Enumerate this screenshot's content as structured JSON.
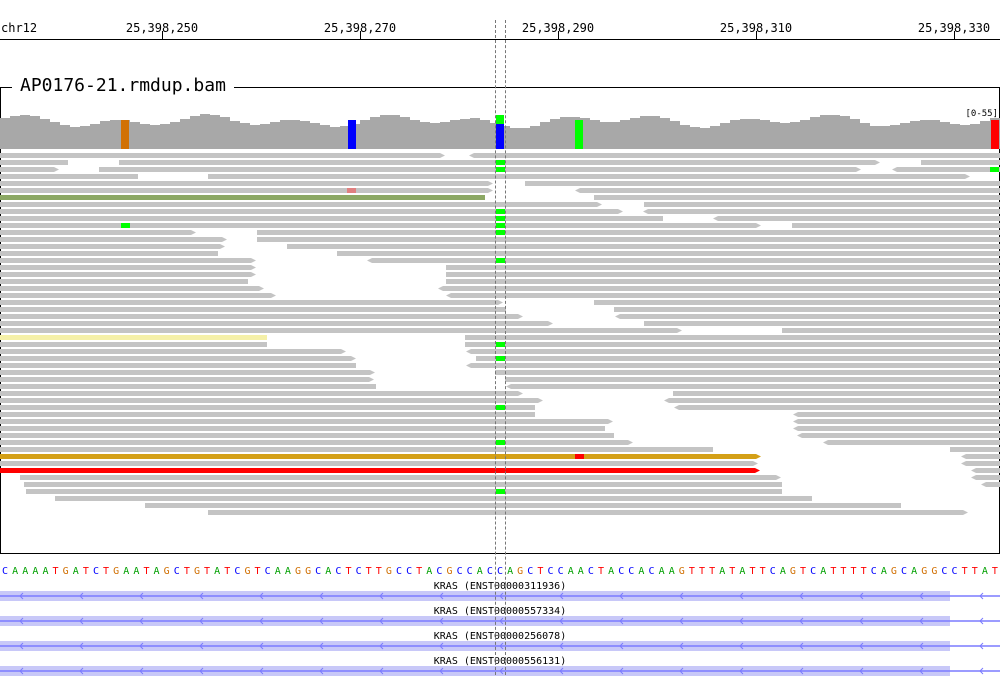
{
  "ruler": {
    "chromosome": "chr12",
    "ticks": [
      "25,398,250",
      "25,398,270",
      "25,398,290",
      "25,398,310",
      "25,398,330"
    ]
  },
  "track": {
    "title": "AP0176-21.rmdup.bam",
    "coverage_range": "[0-55]"
  },
  "sequence": "CAAAATGATCTGAATAGCTGTATCGTCAAGGCACTCTTGCCTACGCCACCAGCTCCAACTACCACAAGTTTATATTCAGTCATTTTCAGCAGGCCTTAT",
  "genes": [
    {
      "label": "KRAS (ENST00000311936)"
    },
    {
      "label": "KRAS (ENST00000557334)"
    },
    {
      "label": "KRAS (ENST00000256078)"
    },
    {
      "label": "KRAS (ENST00000556131)"
    }
  ],
  "colors": {
    "A": "#00a000",
    "C": "#0000ff",
    "G": "#d17105",
    "T": "#ff0000",
    "read": "#c4c4c4",
    "coverage": "#a8a8a8",
    "mismatch_green": "#00ff00",
    "mismatch_blue": "#0000ff",
    "mismatch_red": "#ff0000",
    "mismatch_orange": "#d17105",
    "highlight_yellow": "#f5f0a8",
    "highlight_olive": "#8ca864",
    "highlight_gold": "#d4a017",
    "highlight_red": "#ff0000",
    "gene_box": "#c8c8f8",
    "gene_line": "#7b7bff"
  }
}
